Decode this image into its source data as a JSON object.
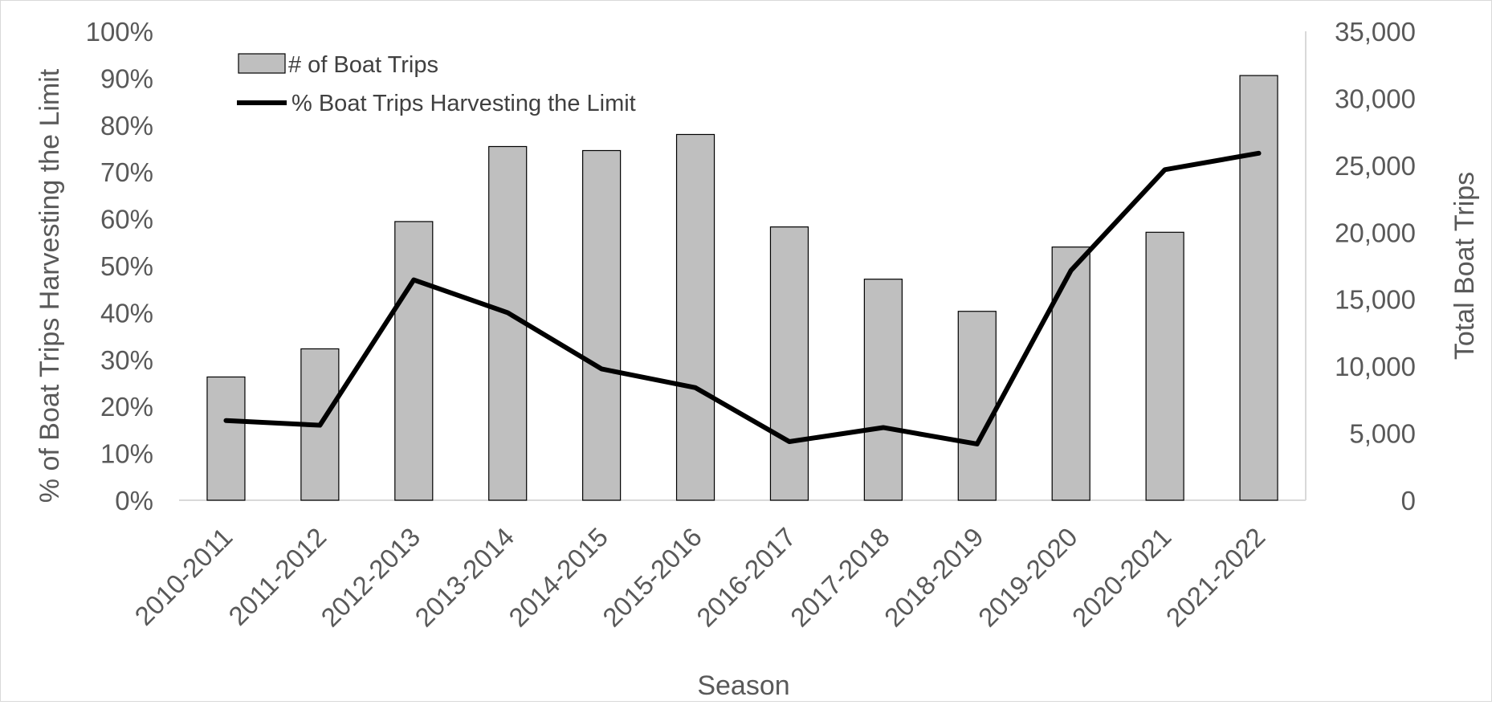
{
  "chart_data": {
    "type": "bar+line",
    "categories": [
      "2010-2011",
      "2011-2012",
      "2012-2013",
      "2013-2014",
      "2014-2015",
      "2015-2016",
      "2016-2017",
      "2017-2018",
      "2018-2019",
      "2019-2020",
      "2020-2021",
      "2021-2022"
    ],
    "series": [
      {
        "name": "# of Boat Trips",
        "type": "bar",
        "axis": "right",
        "values": [
          9200,
          11300,
          20800,
          26400,
          26100,
          27300,
          20400,
          16500,
          14100,
          18900,
          20000,
          31700
        ]
      },
      {
        "name": "% Boat Trips Harvesting the Limit",
        "type": "line",
        "axis": "left",
        "values": [
          17,
          16,
          47,
          40,
          28,
          24,
          12.5,
          15.5,
          12,
          49,
          70.5,
          74
        ]
      }
    ],
    "xlabel": "Season",
    "ylabel_left": "% of Boat Trips Harvesting the Limit",
    "ylabel_right": "Total Boat Trips",
    "ylim_left": [
      0,
      100
    ],
    "ylim_right": [
      0,
      35000
    ],
    "yticks_left": [
      "0%",
      "10%",
      "20%",
      "30%",
      "40%",
      "50%",
      "60%",
      "70%",
      "80%",
      "90%",
      "100%"
    ],
    "yticks_right": [
      "0",
      "5,000",
      "10,000",
      "15,000",
      "20,000",
      "25,000",
      "30,000",
      "35,000"
    ],
    "grid": false,
    "legend_position": "top-left",
    "colors": {
      "bar_fill": "#bfbfbf",
      "bar_stroke": "#000000",
      "line": "#000000",
      "axis": "#d9d9d9",
      "text": "#595959"
    }
  }
}
